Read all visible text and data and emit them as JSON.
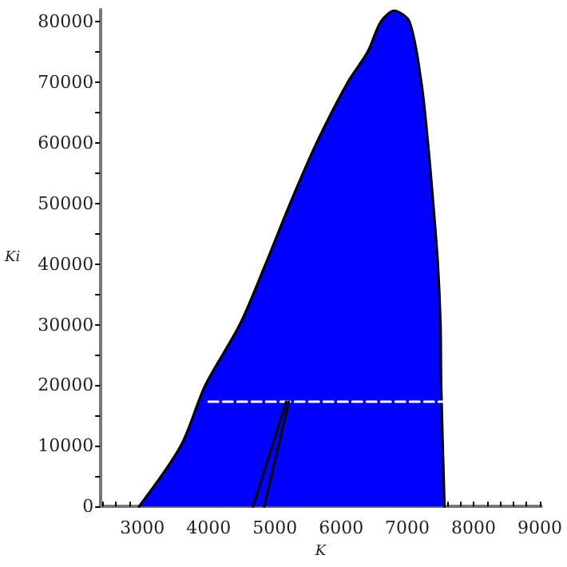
{
  "chart_data": {
    "type": "line",
    "xlabel": "K",
    "ylabel": "Ki",
    "xlim": [
      2360,
      9020
    ],
    "ylim": [
      0,
      82000
    ],
    "xticks": [
      3000,
      4000,
      5000,
      6000,
      7000,
      8000,
      9000,
      {
        "value": 2400,
        "label": null
      },
      {
        "value": 2600,
        "label": null
      },
      {
        "value": 2800,
        "label": null
      },
      {
        "value": 3200,
        "label": null
      },
      {
        "value": 3400,
        "label": null
      },
      {
        "value": 3600,
        "label": null
      },
      {
        "value": 3800,
        "label": null
      },
      {
        "value": 4200,
        "label": null
      },
      {
        "value": 4400,
        "label": null
      },
      {
        "value": 4600,
        "label": null
      },
      {
        "value": 4800,
        "label": null
      },
      {
        "value": 5200,
        "label": null
      },
      {
        "value": 5400,
        "label": null
      },
      {
        "value": 5600,
        "label": null
      },
      {
        "value": 5800,
        "label": null
      },
      {
        "value": 6200,
        "label": null
      },
      {
        "value": 6400,
        "label": null
      },
      {
        "value": 6600,
        "label": null
      },
      {
        "value": 6800,
        "label": null
      },
      {
        "value": 7200,
        "label": null
      },
      {
        "value": 7400,
        "label": null
      },
      {
        "value": 7600,
        "label": null
      },
      {
        "value": 7800,
        "label": null
      },
      {
        "value": 8200,
        "label": null
      },
      {
        "value": 8400,
        "label": null
      },
      {
        "value": 8600,
        "label": null
      },
      {
        "value": 8800,
        "label": null
      }
    ],
    "yticks": [
      0,
      10000,
      20000,
      30000,
      40000,
      50000,
      60000,
      70000,
      80000,
      {
        "value": 5000,
        "label": null
      },
      {
        "value": 15000,
        "label": null
      },
      {
        "value": 25000,
        "label": null
      },
      {
        "value": 35000,
        "label": null
      },
      {
        "value": 45000,
        "label": null
      },
      {
        "value": 55000,
        "label": null
      },
      {
        "value": 65000,
        "label": null
      },
      {
        "value": 75000,
        "label": null
      }
    ],
    "grid": false,
    "marker": "none",
    "series": [
      {
        "type": "area",
        "color": "#0000ff",
        "x": [
          2950,
          3580,
          3950,
          4470,
          4860,
          5230,
          5630,
          6100,
          6400,
          6600,
          6800,
          7030,
          7210,
          7310,
          7390,
          7460,
          7500,
          7510,
          7560
        ],
        "values": [
          0,
          10000,
          20000,
          30000,
          40000,
          50000,
          60000,
          70000,
          75000,
          80000,
          81800,
          80000,
          70000,
          60000,
          50000,
          40000,
          30000,
          20000,
          0
        ]
      },
      {
        "color": "#ffffff",
        "line_style": "dashed",
        "x": [
          4000,
          7550
        ],
        "values": [
          17300,
          17300
        ]
      },
      {
        "color": "#000000",
        "line_style": "solid",
        "x": [
          4670,
          5170
        ],
        "values": [
          0,
          17300
        ]
      },
      {
        "color": "#000000",
        "line_style": "solid",
        "x": [
          4840,
          5210
        ],
        "values": [
          0,
          17300
        ]
      }
    ]
  }
}
